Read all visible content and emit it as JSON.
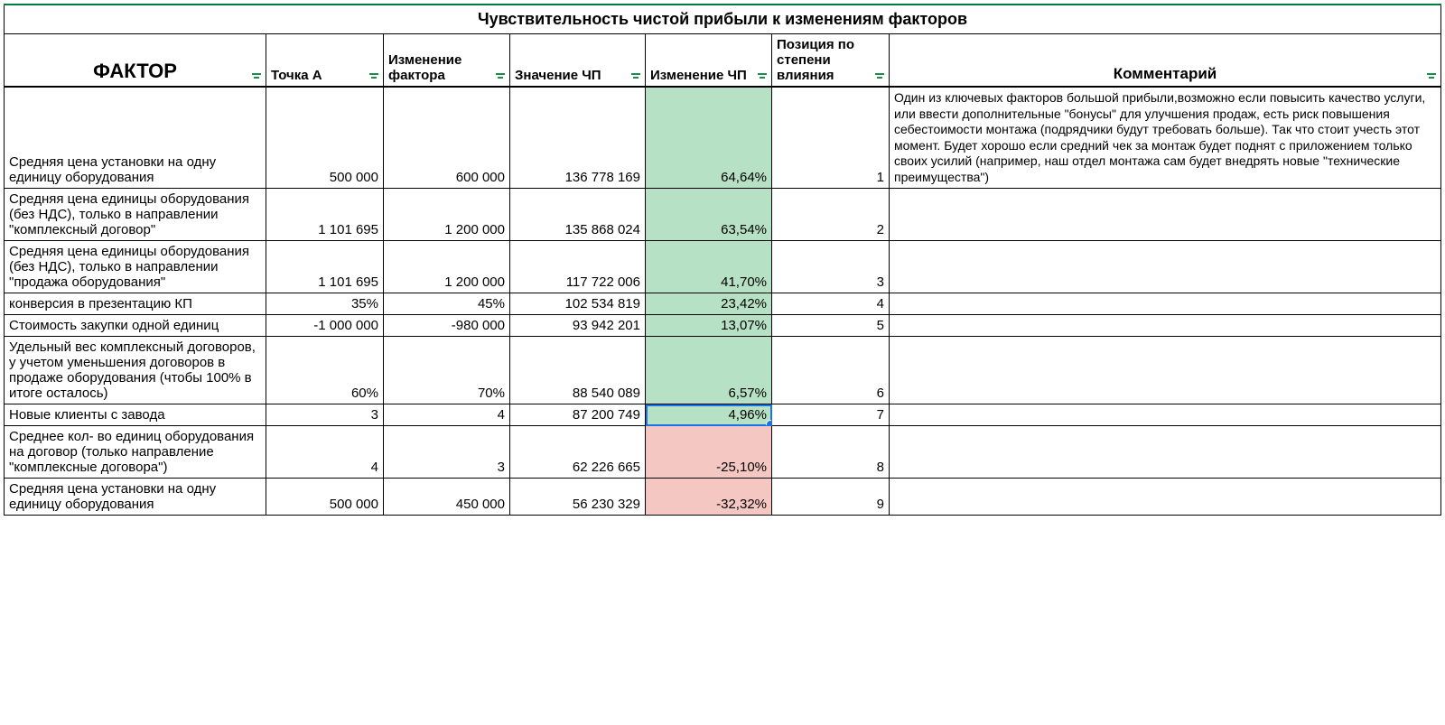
{
  "title": "Чувствительность чистой прибыли к изменениям факторов",
  "columns": {
    "factor": "ФАКТОР",
    "pointA": "Точка А",
    "change": "Изменение фактора",
    "valueCP": "Значение ЧП",
    "changeCP": "Изменение ЧП",
    "position": "Позиция по степени влияния",
    "comment": "Комментарий"
  },
  "colors": {
    "positive_fill": "#b7e1c4",
    "negative_fill": "#f4c7c3",
    "selection_border": "#1a73e8",
    "filter_icon": "#1a8f4c",
    "border": "#000000"
  },
  "selected_cell": {
    "row_index": 6,
    "column": "changeCP"
  },
  "rows": [
    {
      "factor": "Средняя цена установки на одну единицу оборудования",
      "pointA": "500 000",
      "change": "600 000",
      "valueCP": "136 778 169",
      "changeCP": "64,64%",
      "changeCP_sign": "pos",
      "position": "1",
      "comment": "Один из ключевых факторов большой прибыли,возможно если повысить качество услуги, или ввести дополнительные \"бонусы\" для улучшения продаж, есть риск повышения себестоимости монтажа (подрядчики будут требовать больше). Так что стоит учесть этот момент. Будет хорошо если средний чек за монтаж будет поднят с приложением только своих усилий (например, наш отдел монтажа сам будет внедрять новые \"технические преимущества\")"
    },
    {
      "factor": "Средняя цена единицы оборудования (без НДС), только в направлении \"комплексный договор\"",
      "pointA": "1 101 695",
      "change": "1 200 000",
      "valueCP": "135 868 024",
      "changeCP": "63,54%",
      "changeCP_sign": "pos",
      "position": "2",
      "comment": ""
    },
    {
      "factor": "Средняя цена единицы оборудования (без НДС), только в направлении \"продажа оборудования\"",
      "pointA": "1 101 695",
      "change": "1 200 000",
      "valueCP": "117 722 006",
      "changeCP": "41,70%",
      "changeCP_sign": "pos",
      "position": "3",
      "comment": ""
    },
    {
      "factor": "конверсия в презентацию КП",
      "pointA": "35%",
      "change": "45%",
      "valueCP": "102 534 819",
      "changeCP": "23,42%",
      "changeCP_sign": "pos",
      "position": "4",
      "comment": ""
    },
    {
      "factor": "Стоимость закупки одной единиц",
      "factor_nowrap": true,
      "pointA": "-1 000 000",
      "change": "-980 000",
      "valueCP": "93 942 201",
      "changeCP": "13,07%",
      "changeCP_sign": "pos",
      "position": "5",
      "comment": ""
    },
    {
      "factor": "Удельный вес комплексный договоров, у учетом уменьшения договоров в продаже оборудования (чтобы 100% в итоге осталось)",
      "pointA": "60%",
      "change": "70%",
      "valueCP": "88 540 089",
      "changeCP": "6,57%",
      "changeCP_sign": "pos",
      "position": "6",
      "comment": ""
    },
    {
      "factor": "Новые клиенты с завода",
      "pointA": "3",
      "change": "4",
      "valueCP": "87 200 749",
      "changeCP": "4,96%",
      "changeCP_sign": "pos",
      "position": "7",
      "comment": ""
    },
    {
      "factor": "Среднее кол- во единиц оборудования на договор (только направление \"комплексные договора\")",
      "pointA": "4",
      "change": "3",
      "valueCP": "62 226 665",
      "changeCP": "-25,10%",
      "changeCP_sign": "neg",
      "position": "8",
      "comment": ""
    },
    {
      "factor": "Средняя цена установки на одну единицу оборудования",
      "pointA": "500 000",
      "change": "450 000",
      "valueCP": "56 230 329",
      "changeCP": "-32,32%",
      "changeCP_sign": "neg",
      "position": "9",
      "comment": ""
    }
  ]
}
